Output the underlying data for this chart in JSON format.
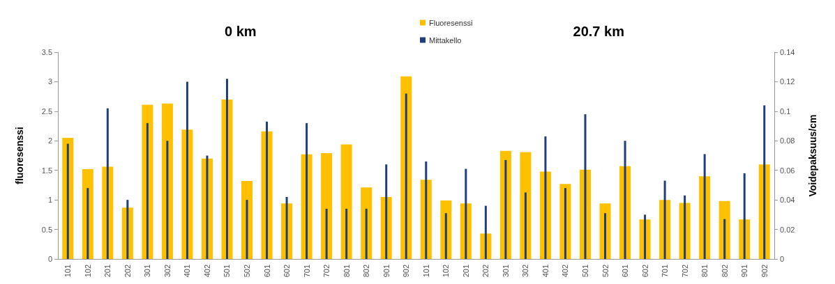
{
  "chart_data": {
    "type": "bar",
    "annotations": [
      "0 km",
      "20.7 km"
    ],
    "ylabel": "fluoresenssi",
    "y2label": "Voidepaksuus/cm",
    "categories": [
      "101",
      "102",
      "201",
      "202",
      "301",
      "302",
      "401",
      "402",
      "501",
      "502",
      "601",
      "602",
      "701",
      "702",
      "801",
      "802",
      "901",
      "902",
      "101",
      "102",
      "201",
      "202",
      "301",
      "302",
      "401",
      "402",
      "501",
      "502",
      "601",
      "602",
      "701",
      "702",
      "801",
      "802",
      "901",
      "902"
    ],
    "series": [
      {
        "name": "Fluoresenssi",
        "color": "#ffc000",
        "values": [
          2.05,
          1.52,
          1.56,
          0.87,
          2.61,
          2.63,
          2.19,
          1.7,
          2.7,
          1.32,
          2.16,
          0.94,
          1.77,
          1.79,
          1.94,
          1.21,
          1.05,
          3.09,
          1.34,
          0.99,
          0.94,
          0.43,
          1.83,
          1.81,
          1.48,
          1.27,
          1.51,
          0.94,
          1.57,
          0.67,
          1.0,
          0.95,
          1.4,
          0.98,
          0.67,
          1.6
        ]
      },
      {
        "name": "Mittakello",
        "color": "#203f7a",
        "axis": "y2",
        "values": [
          0.078,
          0.048,
          0.102,
          0.04,
          0.092,
          0.08,
          0.12,
          0.07,
          0.122,
          0.04,
          0.093,
          0.042,
          0.092,
          0.034,
          0.034,
          0.034,
          0.064,
          0.112,
          0.066,
          0.031,
          0.061,
          0.036,
          0.067,
          0.045,
          0.083,
          0.048,
          0.098,
          0.031,
          0.08,
          0.03,
          0.053,
          0.043,
          0.071,
          0.027,
          0.058,
          0.104
        ]
      }
    ],
    "ylim": [
      0,
      3.5
    ],
    "yticks": [
      0,
      0.5,
      1,
      1.5,
      2,
      2.5,
      3,
      3.5
    ],
    "y2lim": [
      0,
      0.14
    ],
    "y2ticks": [
      0,
      0.02,
      0.04,
      0.06,
      0.08,
      0.1,
      0.12,
      0.14
    ],
    "grid": false,
    "legend": "top"
  }
}
